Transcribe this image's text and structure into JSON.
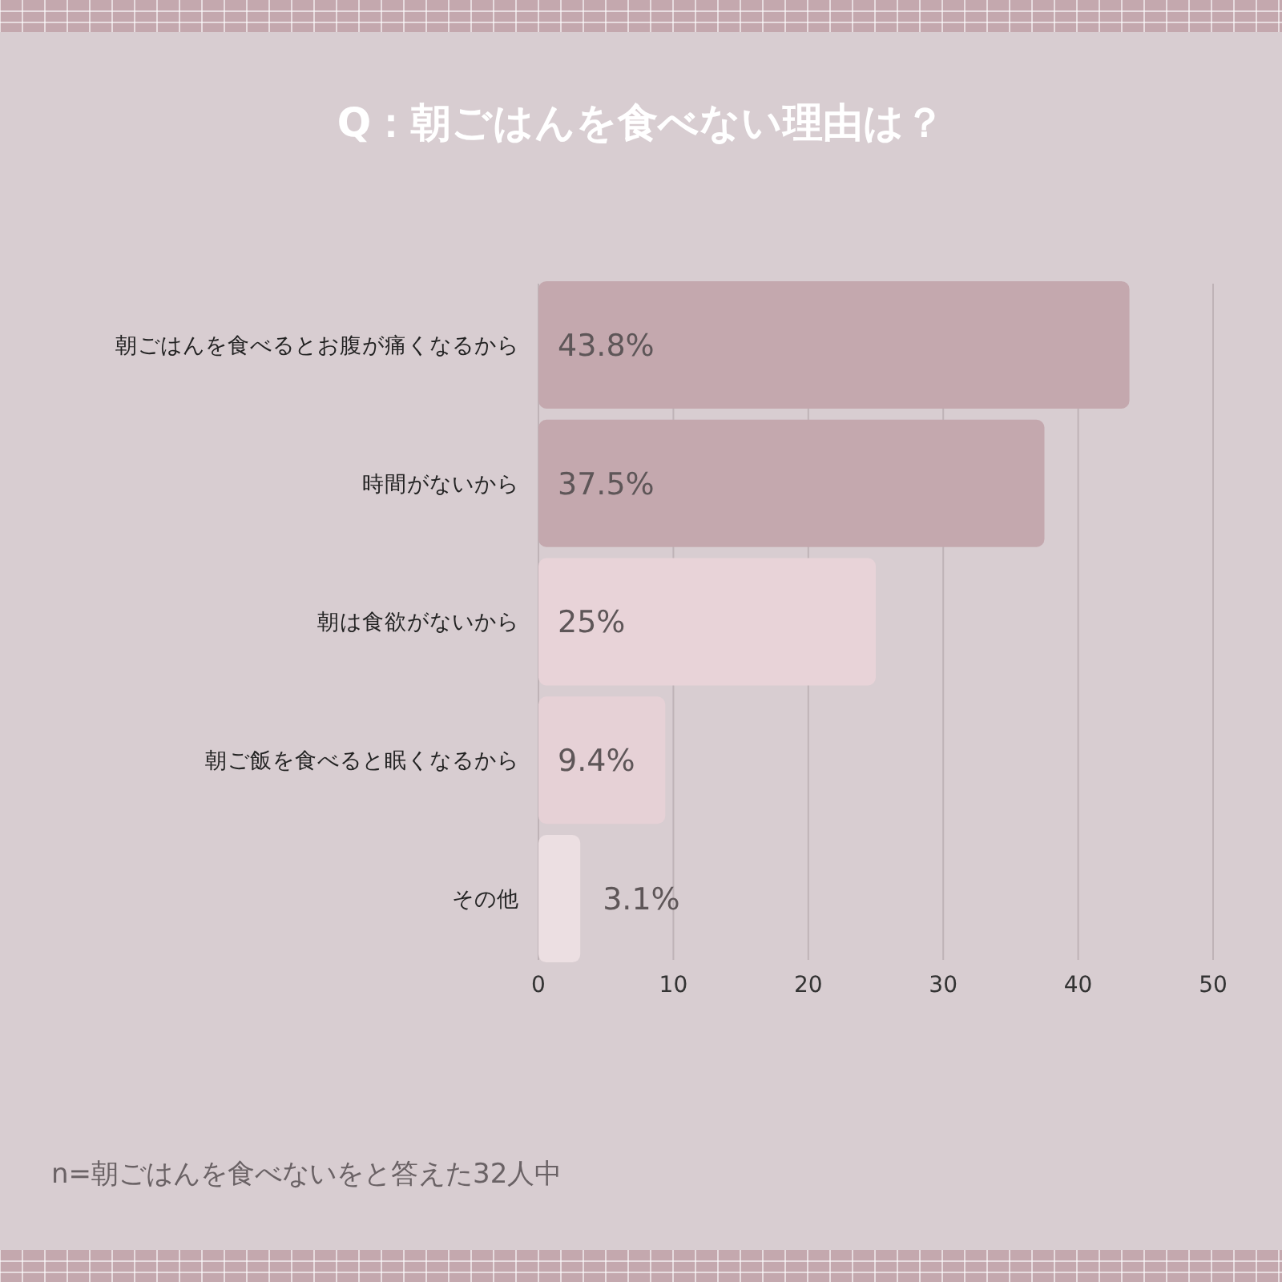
{
  "chart_data": {
    "type": "bar",
    "orientation": "horizontal",
    "title": "Q：朝ごはんを食べない理由は？",
    "categories": [
      "朝ごはんを食べるとお腹が痛くなるから",
      "時間がないから",
      "朝は食欲がないから",
      "朝ご飯を食べると眠くなるから",
      "その他"
    ],
    "values": [
      43.8,
      37.5,
      25,
      9.4,
      3.1
    ],
    "colors": [
      "#c4a8ae",
      "#c4a8ae",
      "#e8d3d8",
      "#e6d1d6",
      "#ecdfe2"
    ],
    "value_labels": [
      "43.8%",
      "37.5%",
      "25%",
      "9.4%",
      "3.1%"
    ],
    "xlim": [
      0,
      50
    ],
    "xticks": [
      0,
      10,
      20,
      30,
      40,
      50
    ],
    "grid": "x",
    "annotations": [
      "n=朝ごはんを食べないをと答えた32人中"
    ]
  }
}
